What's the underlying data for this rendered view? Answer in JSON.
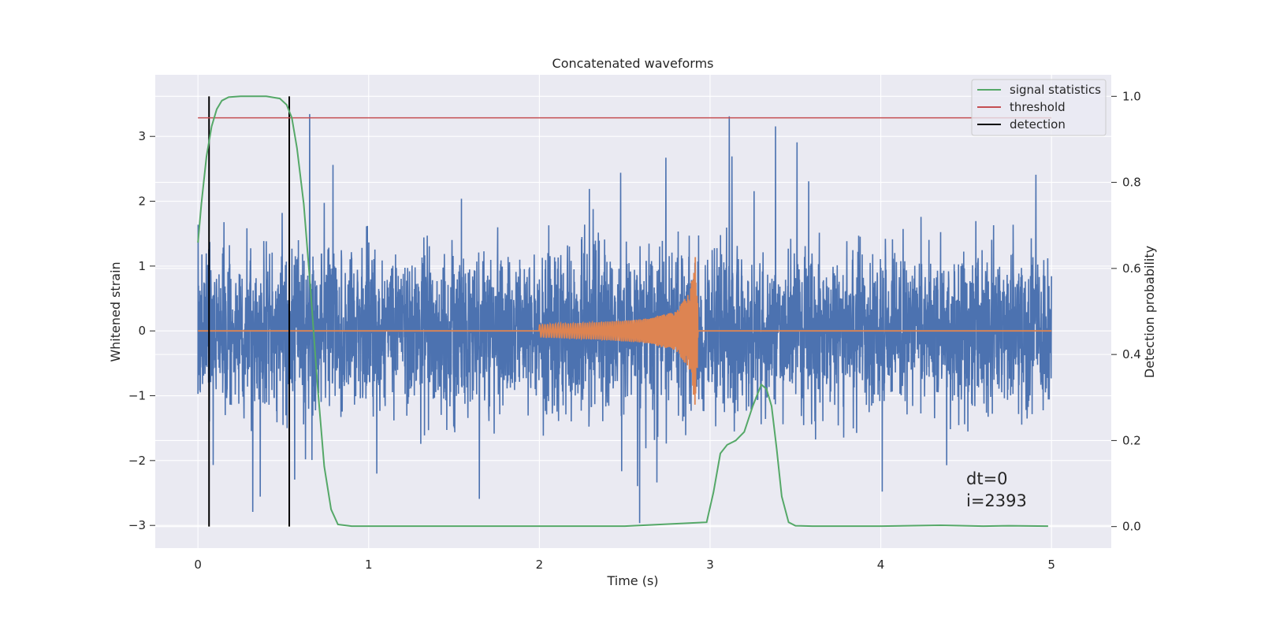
{
  "chart_data": {
    "type": "line",
    "title": "Concatenated waveforms",
    "xlabel": "Time (s)",
    "ylabel": "Whitened strain",
    "ylabel_right": "Detection probability",
    "xlim": [
      -0.25,
      5.35
    ],
    "ylim": [
      -3.35,
      3.95
    ],
    "ylim_right": [
      -0.05,
      1.05
    ],
    "x_ticks": [
      0,
      1,
      2,
      3,
      4,
      5
    ],
    "y_ticks": [
      -3,
      -2,
      -1,
      0,
      1,
      2,
      3
    ],
    "y_ticks_right": [
      0.0,
      0.2,
      0.4,
      0.6,
      0.8,
      1.0
    ],
    "x_tick_labels": [
      "0",
      "1",
      "2",
      "3",
      "4",
      "5"
    ],
    "y_tick_labels": [
      "−3",
      "−2",
      "−1",
      "0",
      "1",
      "2",
      "3"
    ],
    "y_tick_labels_right": [
      "0.0",
      "0.2",
      "0.4",
      "0.6",
      "0.8",
      "1.0"
    ],
    "grid": true,
    "legend_position": "top-right",
    "colors": {
      "strain": "#4c72b0",
      "template": "#dd8452",
      "signal_statistics": "#55a868",
      "threshold": "#c44e52",
      "detection": "#000000",
      "axes_bg": "#eaeaf2",
      "grid": "#ffffff"
    },
    "series": [
      {
        "name": "",
        "role": "whitened strain (noise)",
        "axis": "left",
        "x_range": [
          0,
          5
        ],
        "typical_range": [
          -1.3,
          1.4
        ],
        "max": 3.63,
        "min": -3.05
      },
      {
        "name": "",
        "role": "chirp template",
        "axis": "left",
        "x": [
          0,
          2.0,
          2.3,
          2.6,
          2.8,
          2.88,
          2.92,
          2.93,
          5
        ],
        "envelope": [
          0,
          0.1,
          0.13,
          0.18,
          0.3,
          0.6,
          1.3,
          0,
          0
        ]
      },
      {
        "name": "signal statistics",
        "axis": "right",
        "x": [
          0.0,
          0.02,
          0.05,
          0.08,
          0.11,
          0.14,
          0.18,
          0.25,
          0.4,
          0.48,
          0.52,
          0.55,
          0.58,
          0.62,
          0.66,
          0.7,
          0.74,
          0.78,
          0.82,
          0.9,
          1.5,
          2.5,
          2.98,
          3.02,
          3.06,
          3.1,
          3.15,
          3.2,
          3.25,
          3.28,
          3.3,
          3.33,
          3.36,
          3.39,
          3.42,
          3.46,
          3.5,
          3.6,
          4.0,
          4.35,
          4.6,
          4.75,
          4.98
        ],
        "y": [
          0.66,
          0.75,
          0.86,
          0.93,
          0.97,
          0.99,
          0.998,
          1.0,
          1.0,
          0.995,
          0.98,
          0.95,
          0.88,
          0.75,
          0.55,
          0.33,
          0.14,
          0.04,
          0.005,
          0.001,
          0.001,
          0.001,
          0.01,
          0.08,
          0.17,
          0.19,
          0.2,
          0.22,
          0.28,
          0.31,
          0.33,
          0.32,
          0.28,
          0.18,
          0.07,
          0.01,
          0.002,
          0.001,
          0.001,
          0.003,
          0.001,
          0.002,
          0.001
        ]
      },
      {
        "name": "threshold",
        "axis": "right",
        "x": [
          0,
          5
        ],
        "y": [
          0.95,
          0.95
        ]
      },
      {
        "name": "detection",
        "axis": "right",
        "x": [
          0.065,
          0.535
        ],
        "y_range": [
          0.0,
          1.0
        ]
      }
    ],
    "annotations": [
      "dt=0",
      "i=2393"
    ]
  }
}
